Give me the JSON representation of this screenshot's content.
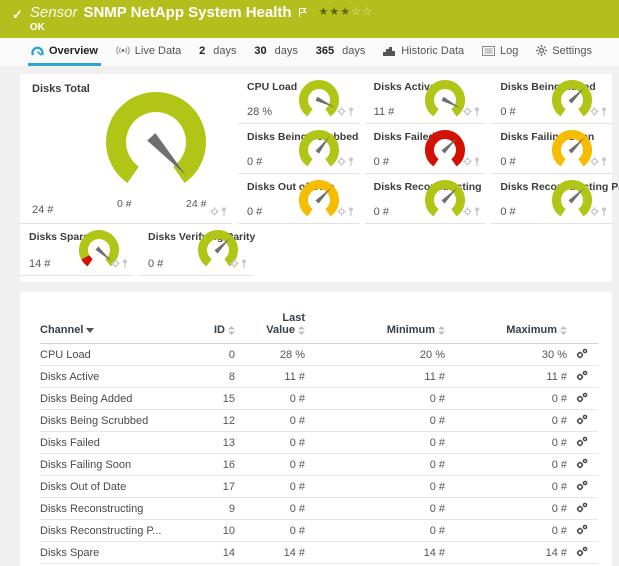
{
  "colors": {
    "banner_bg": "#b2bf1d",
    "accent_blue": "#2da4d8",
    "gauge_green": "#b0c515",
    "gauge_yellow": "#f5bc00",
    "gauge_red": "#d41000",
    "needle": "#6f6f6f",
    "table_header_text": "#33414e"
  },
  "header": {
    "kind_label": "Sensor",
    "title": "SNMP NetApp System Health",
    "status": "OK",
    "rating": {
      "filled": 3,
      "total": 5
    }
  },
  "tabs": [
    {
      "label": "Overview",
      "icon": "overview-gauge-icon",
      "active": true
    },
    {
      "label": "Live Data",
      "icon": "live-data-icon",
      "active": false
    },
    {
      "num": "2",
      "label": "days",
      "active": false
    },
    {
      "num": "30",
      "label": "days",
      "active": false
    },
    {
      "num": "365",
      "label": "days",
      "active": false
    },
    {
      "label": "Historic Data",
      "icon": "historic-data-icon",
      "active": false
    },
    {
      "label": "Log",
      "icon": "log-icon",
      "active": false
    },
    {
      "label": "Settings",
      "icon": "settings-gear-icon",
      "active": false
    }
  ],
  "gauges": {
    "primary": {
      "title": "Disks Total",
      "value": "24 #",
      "scale_min_label": "0 #",
      "scale_max_label": "24 #",
      "color": "green",
      "needle_deg": 48
    },
    "small": [
      {
        "title": "CPU Load",
        "value": "28 %",
        "color": "green",
        "needle_deg": 25
      },
      {
        "title": "Disks Active",
        "value": "11 #",
        "color": "green",
        "needle_deg": 28
      },
      {
        "title": "Disks Being Added",
        "value": "0 #",
        "color": "green",
        "needle_deg": -45
      },
      {
        "title": "Disks Being Scrubbed",
        "value": "0 #",
        "color": "green",
        "needle_deg": -52
      },
      {
        "title": "Disks Failed",
        "value": "0 #",
        "color": "red",
        "needle_deg": -45
      },
      {
        "title": "Disks Failing Soon",
        "value": "0 #",
        "color": "yellow",
        "needle_deg": -45
      },
      {
        "title": "Disks Out of Date",
        "value": "0 #",
        "color": "yellow",
        "needle_deg": -45
      },
      {
        "title": "Disks Reconstructing",
        "value": "0 #",
        "color": "green",
        "needle_deg": -45
      },
      {
        "title": "Disks Reconstructing Parity",
        "value": "0 #",
        "color": "green",
        "needle_deg": -45
      },
      {
        "title": "Disks Spare",
        "value": "14 #",
        "color": "green",
        "needle_deg": 42,
        "warn_segment": true
      },
      {
        "title": "Disks Verifying Parity",
        "value": "0 #",
        "color": "green",
        "needle_deg": -45
      }
    ]
  },
  "table": {
    "columns": [
      {
        "label": "Channel",
        "sort": "active-desc"
      },
      {
        "label": "ID",
        "sort": "both"
      },
      {
        "label_line1": "Last",
        "label_line2": "Value",
        "sort": "both"
      },
      {
        "label": "Minimum",
        "sort": "both"
      },
      {
        "label": "Maximum",
        "sort": "both"
      },
      {
        "label": "",
        "sort": "none"
      }
    ],
    "rows": [
      {
        "channel": "CPU Load",
        "id": "0",
        "last": "28 %",
        "min": "20 %",
        "max": "30 %"
      },
      {
        "channel": "Disks Active",
        "id": "8",
        "last": "11 #",
        "min": "11 #",
        "max": "11 #"
      },
      {
        "channel": "Disks Being Added",
        "id": "15",
        "last": "0 #",
        "min": "0 #",
        "max": "0 #"
      },
      {
        "channel": "Disks Being Scrubbed",
        "id": "12",
        "last": "0 #",
        "min": "0 #",
        "max": "0 #"
      },
      {
        "channel": "Disks Failed",
        "id": "13",
        "last": "0 #",
        "min": "0 #",
        "max": "0 #"
      },
      {
        "channel": "Disks Failing Soon",
        "id": "16",
        "last": "0 #",
        "min": "0 #",
        "max": "0 #"
      },
      {
        "channel": "Disks Out of Date",
        "id": "17",
        "last": "0 #",
        "min": "0 #",
        "max": "0 #"
      },
      {
        "channel": "Disks Reconstructing",
        "id": "9",
        "last": "0 #",
        "min": "0 #",
        "max": "0 #"
      },
      {
        "channel": "Disks Reconstructing P...",
        "id": "10",
        "last": "0 #",
        "min": "0 #",
        "max": "0 #"
      },
      {
        "channel": "Disks Spare",
        "id": "14",
        "last": "14 #",
        "min": "14 #",
        "max": "14 #"
      }
    ]
  }
}
